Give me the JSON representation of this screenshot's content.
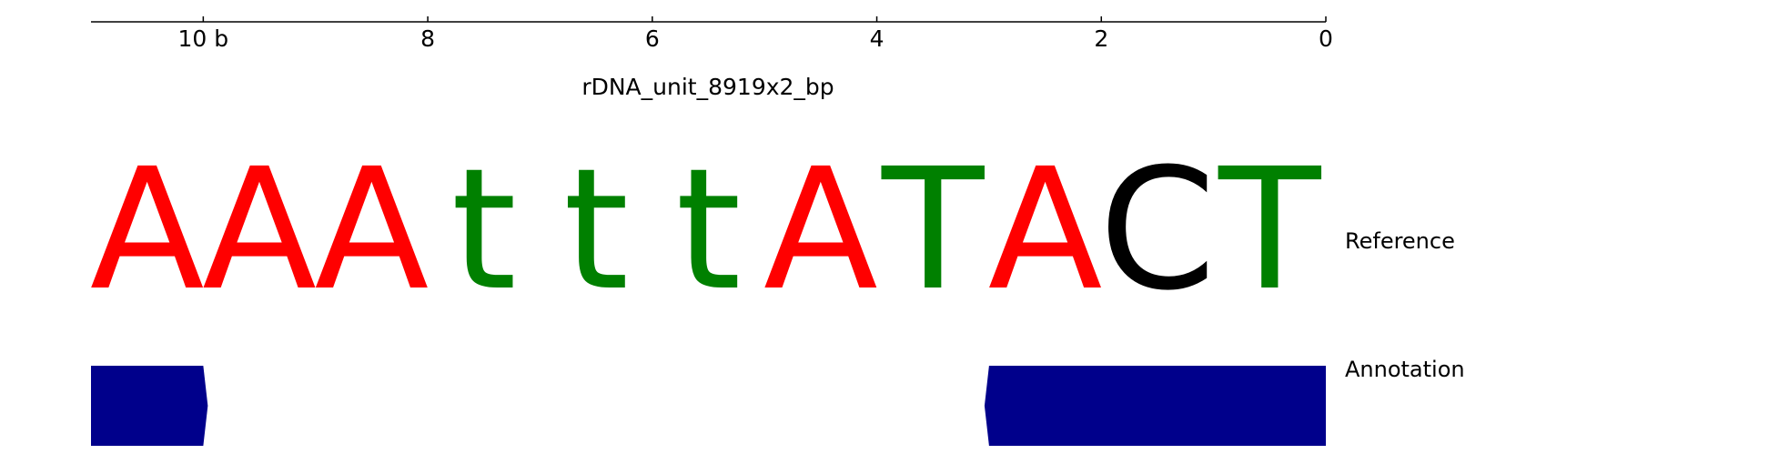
{
  "ruler": {
    "ticks": [
      {
        "label": "10 b",
        "value": 10
      },
      {
        "label": "8",
        "value": 8
      },
      {
        "label": "6",
        "value": 6
      },
      {
        "label": "4",
        "value": 4
      },
      {
        "label": "2",
        "value": 2
      },
      {
        "label": "0",
        "value": 0
      }
    ],
    "range": [
      11,
      0
    ]
  },
  "sequence_name": "rDNA_unit_8919x2_bp",
  "tracks": {
    "reference_label": "Reference",
    "annotation_label": "Annotation"
  },
  "reference": {
    "bases": [
      {
        "char": "A",
        "color": "#ff0000"
      },
      {
        "char": "A",
        "color": "#ff0000"
      },
      {
        "char": "A",
        "color": "#ff0000"
      },
      {
        "char": "t",
        "color": "#008000"
      },
      {
        "char": "t",
        "color": "#008000"
      },
      {
        "char": "t",
        "color": "#008000"
      },
      {
        "char": "A",
        "color": "#ff0000"
      },
      {
        "char": "T",
        "color": "#008000"
      },
      {
        "char": "A",
        "color": "#ff0000"
      },
      {
        "char": "C",
        "color": "#000000"
      },
      {
        "char": "T",
        "color": "#008000"
      }
    ]
  },
  "annotation": {
    "color": "#00008b",
    "features": [
      {
        "start": 10,
        "end": 11,
        "direction": "right"
      },
      {
        "start": 0,
        "end": 3,
        "direction": "left"
      }
    ]
  }
}
